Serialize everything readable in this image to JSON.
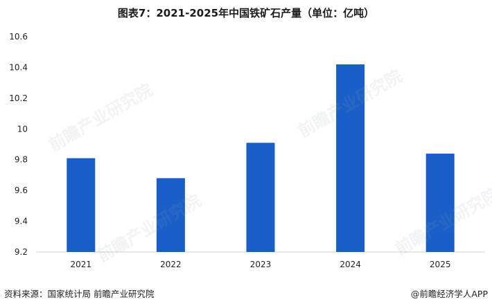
{
  "title": "图表7：2021-2025年中国铁矿石产量（单位：亿吨）",
  "footer": {
    "source": "资料来源：国家统计局 前瞻产业研究院",
    "credit": "@前瞻经济学人APP"
  },
  "watermark": "前瞻产业研究院",
  "colors": {
    "bar": "#1a5fc8",
    "axis": "#d0d0d0",
    "text": "#222222"
  },
  "chart_data": {
    "type": "bar",
    "title": "图表7：2021-2025年中国铁矿石产量（单位：亿吨）",
    "categories": [
      "2021",
      "2022",
      "2023",
      "2024",
      "2025"
    ],
    "values": [
      9.81,
      9.68,
      9.91,
      10.42,
      9.84
    ],
    "ylim": [
      9.2,
      10.6
    ],
    "yticks": [
      "10.6",
      "10.4",
      "10.2",
      "10",
      "9.8",
      "9.6",
      "9.4",
      "9.2"
    ],
    "grid": false,
    "legend": "none"
  }
}
